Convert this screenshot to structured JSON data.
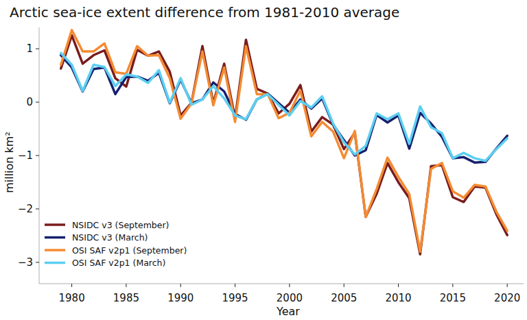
{
  "chart_data": {
    "type": "line",
    "title": "Arctic sea-ice extent difference from 1981-2010 average",
    "x_label": "Year",
    "y_label": "million km²",
    "x": [
      1979,
      1980,
      1981,
      1982,
      1983,
      1984,
      1985,
      1986,
      1987,
      1988,
      1989,
      1990,
      1991,
      1992,
      1993,
      1994,
      1995,
      1996,
      1997,
      1998,
      1999,
      2000,
      2001,
      2002,
      2003,
      2004,
      2005,
      2006,
      2007,
      2008,
      2009,
      2010,
      2011,
      2012,
      2013,
      2014,
      2015,
      2016,
      2017,
      2018,
      2019,
      2020
    ],
    "series": [
      {
        "name": "NSIDC v3 (September)",
        "color": "#7a1c1c",
        "values": [
          0.63,
          1.25,
          0.72,
          0.88,
          0.97,
          0.45,
          0.29,
          0.98,
          0.87,
          0.95,
          0.57,
          -0.25,
          -0.01,
          1.05,
          -0.02,
          0.72,
          -0.3,
          1.17,
          0.25,
          0.16,
          -0.21,
          -0.03,
          0.32,
          -0.55,
          -0.28,
          -0.42,
          -0.88,
          -0.57,
          -2.15,
          -1.72,
          -1.14,
          -1.5,
          -1.8,
          -2.85,
          -1.2,
          -1.18,
          -1.78,
          -1.87,
          -1.58,
          -1.6,
          -2.1,
          -2.49
        ]
      },
      {
        "name": "NSIDC v3 (March)",
        "color": "#16206e",
        "values": [
          0.88,
          0.65,
          0.2,
          0.62,
          0.65,
          0.15,
          0.47,
          0.48,
          0.4,
          0.55,
          -0.02,
          0.42,
          -0.02,
          0.05,
          0.37,
          0.2,
          -0.22,
          -0.33,
          0.05,
          0.16,
          -0.02,
          -0.2,
          0.05,
          -0.12,
          0.07,
          -0.42,
          -0.71,
          -1.0,
          -0.9,
          -0.24,
          -0.38,
          -0.25,
          -0.87,
          -0.2,
          -0.4,
          -0.65,
          -1.05,
          -1.03,
          -1.13,
          -1.12,
          -0.87,
          -0.63
        ]
      },
      {
        "name": "OSI SAF v2p1 (September)",
        "color": "#f48b32",
        "values": [
          0.7,
          1.35,
          0.95,
          0.95,
          1.1,
          0.56,
          0.53,
          1.05,
          0.87,
          0.88,
          0.45,
          -0.31,
          -0.02,
          0.95,
          -0.06,
          0.65,
          -0.37,
          1.05,
          0.15,
          0.15,
          -0.3,
          -0.2,
          0.22,
          -0.64,
          -0.37,
          -0.55,
          -1.05,
          -0.54,
          -2.15,
          -1.63,
          -1.04,
          -1.4,
          -1.72,
          -2.8,
          -1.25,
          -1.14,
          -1.67,
          -1.79,
          -1.55,
          -1.58,
          -2.05,
          -2.41
        ]
      },
      {
        "name": "OSI SAF v2p1 (March)",
        "color": "#5ccff2",
        "values": [
          0.92,
          0.7,
          0.21,
          0.7,
          0.66,
          0.3,
          0.52,
          0.48,
          0.36,
          0.6,
          -0.01,
          0.45,
          -0.05,
          0.05,
          0.3,
          0.07,
          -0.25,
          -0.32,
          0.05,
          0.15,
          -0.05,
          -0.25,
          0.02,
          -0.1,
          0.11,
          -0.4,
          -0.75,
          -0.98,
          -0.82,
          -0.21,
          -0.32,
          -0.21,
          -0.78,
          -0.08,
          -0.47,
          -0.58,
          -1.05,
          -0.95,
          -1.05,
          -1.1,
          -0.88,
          -0.68
        ]
      }
    ],
    "xlim": [
      1977,
      2021.5
    ],
    "xticks": [
      1980,
      1985,
      1990,
      1995,
      2000,
      2005,
      2010,
      2015,
      2020
    ],
    "ylim": [
      -3.4,
      1.4
    ],
    "yticks": [
      {
        "value": -3,
        "label": "−3"
      },
      {
        "value": -2,
        "label": "−2"
      },
      {
        "value": -1,
        "label": "−1"
      },
      0,
      1
    ],
    "grid": false,
    "legend": "lower-left"
  }
}
